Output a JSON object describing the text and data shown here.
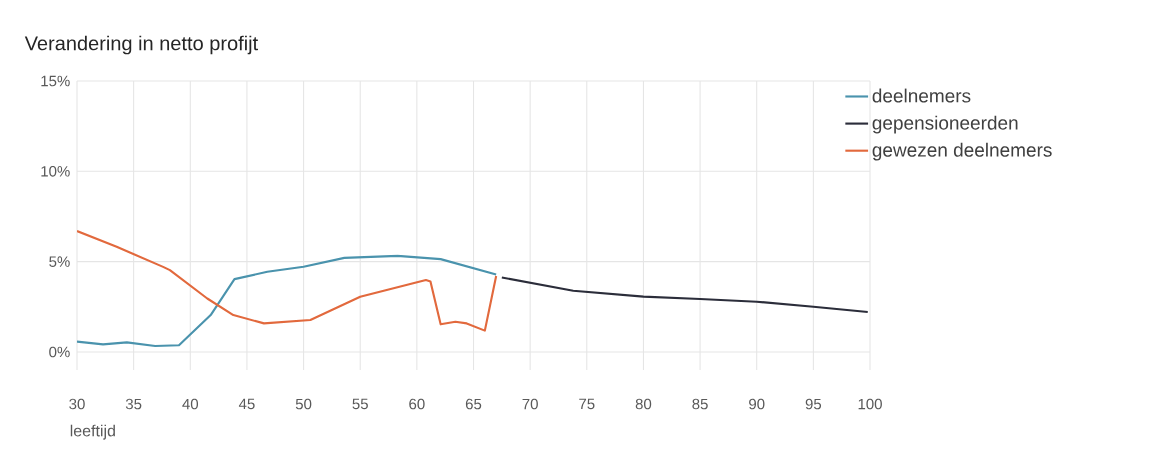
{
  "chart_data": {
    "type": "line",
    "title": "Verandering in netto profijt",
    "xlabel": "leeftijd",
    "xlim": [
      30,
      100
    ],
    "xticks": [
      30,
      35,
      40,
      45,
      50,
      55,
      60,
      65,
      70,
      75,
      80,
      85,
      90,
      95,
      100
    ],
    "ylim": [
      -1,
      15
    ],
    "yticks": [
      {
        "value": 0,
        "label": "0%"
      },
      {
        "value": 5,
        "label": "5%"
      },
      {
        "value": 10,
        "label": "10%"
      },
      {
        "value": 15,
        "label": "15%"
      }
    ],
    "grid": true,
    "legend": "right",
    "marker": "none",
    "line_style": "solid",
    "series": [
      {
        "name": "deelnemers",
        "color": "#4a93ad",
        "x": [
          30,
          32.3,
          34.4,
          36.9,
          39.0,
          41.8,
          43.9,
          46.8,
          50.0,
          53.6,
          58.3,
          62.1,
          67.0
        ],
        "values": [
          0.57,
          0.42,
          0.53,
          0.33,
          0.37,
          2.04,
          4.03,
          4.44,
          4.72,
          5.21,
          5.32,
          5.14,
          4.29
        ]
      },
      {
        "name": "gepensioneerden",
        "color": "#2b2d3a",
        "x": [
          67.5,
          73.8,
          80.0,
          85.0,
          90.0,
          95.0,
          99.8
        ],
        "values": [
          4.12,
          3.39,
          3.06,
          2.93,
          2.78,
          2.5,
          2.21
        ]
      },
      {
        "name": "gewezen deelnemers",
        "color": "#e2693d",
        "x": [
          30,
          33.5,
          37.6,
          38.2,
          41.5,
          43.8,
          46.5,
          50.6,
          55.0,
          60.8,
          61.2,
          62.1,
          63.4,
          64.4,
          66.0,
          67.0
        ],
        "values": [
          6.69,
          5.82,
          4.71,
          4.53,
          2.96,
          2.04,
          1.58,
          1.77,
          3.06,
          3.98,
          3.9,
          1.53,
          1.67,
          1.58,
          1.18,
          4.2
        ]
      }
    ]
  }
}
